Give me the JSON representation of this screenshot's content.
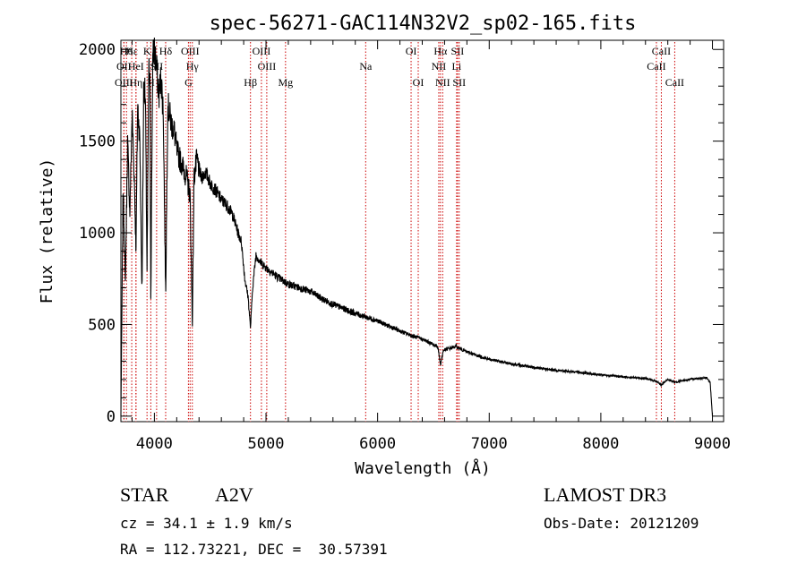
{
  "chart_data": {
    "type": "line",
    "title": "spec-56271-GAC114N32V2_sp02-165.fits",
    "xlabel": "Wavelength (Å)",
    "ylabel": "Flux (relative)",
    "xlim": [
      3700,
      9100
    ],
    "ylim": [
      -30,
      2050
    ],
    "xticks": [
      4000,
      5000,
      6000,
      7000,
      8000,
      9000
    ],
    "yticks": [
      0,
      500,
      1000,
      1500,
      2000
    ],
    "xtick_labels": [
      "4000",
      "5000",
      "6000",
      "7000",
      "8000",
      "9000"
    ],
    "ytick_labels": [
      "0",
      "500",
      "1000",
      "1500",
      "2000"
    ],
    "line_color": "#000000",
    "marker_color": "#cc0000",
    "spectrum": {
      "x": [
        3700,
        3720,
        3740,
        3760,
        3780,
        3800,
        3820,
        3835,
        3850,
        3870,
        3889,
        3905,
        3920,
        3934,
        3950,
        3960,
        3968,
        3985,
        4000,
        4020,
        4040,
        4060,
        4080,
        4101,
        4120,
        4150,
        4180,
        4200,
        4230,
        4260,
        4290,
        4320,
        4340,
        4355,
        4380,
        4420,
        4460,
        4500,
        4550,
        4600,
        4650,
        4700,
        4750,
        4780,
        4810,
        4840,
        4861,
        4880,
        4910,
        4950,
        5000,
        5100,
        5200,
        5300,
        5400,
        5500,
        5600,
        5700,
        5800,
        5900,
        6000,
        6100,
        6200,
        6300,
        6400,
        6500,
        6540,
        6563,
        6590,
        6650,
        6700,
        6800,
        6900,
        7000,
        7200,
        7400,
        7600,
        7800,
        8000,
        8200,
        8400,
        8500,
        8542,
        8600,
        8662,
        8750,
        8850,
        8950,
        8980,
        9000
      ],
      "y": [
        0,
        1250,
        720,
        1500,
        1100,
        1650,
        1300,
        900,
        1700,
        1500,
        650,
        1850,
        1700,
        800,
        1900,
        1800,
        650,
        1950,
        2000,
        1900,
        1750,
        1850,
        1650,
        650,
        1700,
        1600,
        1550,
        1450,
        1400,
        1350,
        1300,
        1200,
        500,
        1300,
        1400,
        1300,
        1330,
        1270,
        1230,
        1180,
        1150,
        1100,
        1000,
        950,
        750,
        650,
        480,
        700,
        880,
        840,
        810,
        760,
        720,
        700,
        680,
        640,
        610,
        585,
        560,
        540,
        520,
        490,
        465,
        440,
        420,
        390,
        380,
        280,
        360,
        370,
        380,
        350,
        330,
        310,
        285,
        265,
        250,
        240,
        225,
        215,
        205,
        190,
        170,
        200,
        185,
        195,
        205,
        210,
        180,
        0
      ]
    },
    "line_markers": [
      {
        "name": "Hδ-a",
        "label": "H6",
        "x": 3750,
        "row": 0
      },
      {
        "name": "OII",
        "label": "OII",
        "x": 3727,
        "row": 1
      },
      {
        "name": "OIII-a",
        "label": "OIII",
        "x": 3727,
        "row": 2
      },
      {
        "name": "Hε",
        "label": "Hε",
        "x": 3797,
        "row": 0
      },
      {
        "name": "HeI",
        "label": "HeI",
        "x": 3835,
        "row": 1
      },
      {
        "name": "Hη",
        "label": "Hη",
        "x": 3835,
        "row": 2
      },
      {
        "name": "K",
        "label": "K",
        "x": 3934,
        "row": 0
      },
      {
        "name": "H",
        "label": "H",
        "x": 3968,
        "row": 2
      },
      {
        "name": "SII-a",
        "label": "SII",
        "x": 4020,
        "row": 1
      },
      {
        "name": "Hδ",
        "label": "Hδ",
        "x": 4101,
        "row": 0
      },
      {
        "name": "OIII-b",
        "label": "OIII",
        "x": 4320,
        "row": 0
      },
      {
        "name": "Hγ",
        "label": "Hγ",
        "x": 4340,
        "row": 1
      },
      {
        "name": "G",
        "label": "G",
        "x": 4305,
        "row": 2
      },
      {
        "name": "Hβ",
        "label": "Hβ",
        "x": 4861,
        "row": 2
      },
      {
        "name": "OIII-c",
        "label": "OIII",
        "x": 4959,
        "row": 0
      },
      {
        "name": "OIII-d",
        "label": "OIII",
        "x": 5007,
        "row": 1
      },
      {
        "name": "Mg",
        "label": "Mg",
        "x": 5175,
        "row": 2
      },
      {
        "name": "Na",
        "label": "Na",
        "x": 5893,
        "row": 1
      },
      {
        "name": "OI-a",
        "label": "OI",
        "x": 6300,
        "row": 0
      },
      {
        "name": "OI-b",
        "label": "OI",
        "x": 6364,
        "row": 2
      },
      {
        "name": "Hα",
        "label": "Hα",
        "x": 6563,
        "row": 0
      },
      {
        "name": "NII-a",
        "label": "NII",
        "x": 6548,
        "row": 1
      },
      {
        "name": "NII-b",
        "label": "NII",
        "x": 6583,
        "row": 2
      },
      {
        "name": "SII-b",
        "label": "SII",
        "x": 6716,
        "row": 0
      },
      {
        "name": "Li",
        "label": "Li",
        "x": 6708,
        "row": 1
      },
      {
        "name": "SII-c",
        "label": "SII",
        "x": 6731,
        "row": 2
      },
      {
        "name": "CaII-a",
        "label": "CaII",
        "x": 8542,
        "row": 0
      },
      {
        "name": "CaII-b",
        "label": "CaII",
        "x": 8498,
        "row": 1
      },
      {
        "name": "CaII-c",
        "label": "CaII",
        "x": 8662,
        "row": 2
      }
    ]
  },
  "footer": {
    "class": "STAR",
    "subclass": "A2V",
    "survey": "LAMOST DR3",
    "cz": "cz = 34.1 ± 1.9 km/s",
    "obs_date": "Obs-Date: 20121209",
    "coords": "RA = 112.73221, DEC =  30.57391"
  }
}
